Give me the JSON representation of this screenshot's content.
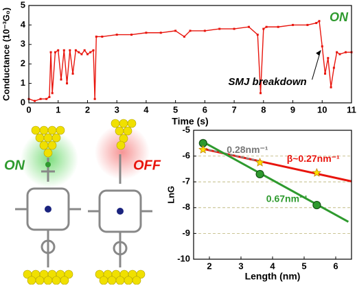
{
  "chart_data": [
    {
      "type": "line",
      "x_label": "Time (s)",
      "y_label": "Conductance (10⁻³G₀)",
      "xlim": [
        0,
        11
      ],
      "xticks": [
        0,
        1,
        2,
        3,
        4,
        5,
        6,
        7,
        8,
        9,
        10,
        11
      ],
      "ylim": [
        0,
        5
      ],
      "yticks": [
        0,
        1,
        2,
        3,
        4,
        5
      ],
      "series": [
        {
          "color": "#e8140c",
          "x": [
            0,
            0.2,
            0.4,
            0.6,
            0.7,
            0.75,
            0.8,
            0.9,
            1.0,
            1.1,
            1.2,
            1.3,
            1.4,
            1.5,
            1.6,
            1.7,
            1.8,
            1.9,
            2.0,
            2.1,
            2.2,
            2.25,
            2.3,
            2.5,
            3,
            3.5,
            4,
            4.5,
            5,
            5.3,
            5.5,
            6,
            6.5,
            7,
            7.5,
            7.8,
            7.9,
            8.0,
            8.1,
            8.5,
            9,
            9.5,
            9.8,
            9.9,
            10.0,
            10.1,
            10.2,
            10.3,
            10.4,
            10.5,
            10.6,
            10.8,
            11
          ],
          "values": [
            0.2,
            0.1,
            0.2,
            0.2,
            0.3,
            2.6,
            0.5,
            2.6,
            2.7,
            1.2,
            2.7,
            1.0,
            2.7,
            1.5,
            2.7,
            2.6,
            2.5,
            2.7,
            2.5,
            2.6,
            2.7,
            0.2,
            3.4,
            3.4,
            3.5,
            3.5,
            3.6,
            3.6,
            3.7,
            3.4,
            3.7,
            3.7,
            3.8,
            3.8,
            3.9,
            3.5,
            0.5,
            3.8,
            3.9,
            3.9,
            4.0,
            4.0,
            4.1,
            4.2,
            2.9,
            1.5,
            2.3,
            0.8,
            1.8,
            2.6,
            2.5,
            2.6,
            2.6
          ]
        }
      ],
      "annotations": [
        "ON",
        "SMJ breakdown"
      ]
    },
    {
      "type": "scatter",
      "x_label": "Length (nm)",
      "y_label": "LnG",
      "xlim": [
        1.5,
        6.5
      ],
      "xticks": [
        2,
        3,
        4,
        5,
        6
      ],
      "ylim": [
        -10,
        -5
      ],
      "yticks": [
        -10,
        -9,
        -8,
        -7,
        -6,
        -5
      ],
      "grid": true,
      "series": [
        {
          "color": "#e8140c",
          "style": "line",
          "x": [
            1.8,
            6.5
          ],
          "values": [
            -5.72,
            -6.98
          ]
        },
        {
          "color": "#888888",
          "style": "dashed",
          "x": [
            1.8,
            3.6
          ],
          "values": [
            -5.7,
            -6.2
          ]
        },
        {
          "color": "#2e9a2e",
          "style": "line",
          "x": [
            1.8,
            6.4
          ],
          "values": [
            -5.45,
            -8.55
          ]
        },
        {
          "color": "#2e9a2e",
          "style": "circle",
          "x": [
            1.8,
            3.6,
            5.4
          ],
          "values": [
            -5.5,
            -6.7,
            -7.9
          ]
        },
        {
          "color": "#ffe000",
          "style": "star",
          "x": [
            1.8,
            3.6,
            5.4
          ],
          "values": [
            -5.75,
            -6.25,
            -6.65
          ]
        }
      ],
      "annotations": [
        "0.28nm⁻¹",
        "β~0.27nm⁻¹",
        "0.67nm⁻¹"
      ]
    }
  ],
  "illustration": {
    "labels": [
      "ON",
      "OFF"
    ]
  }
}
